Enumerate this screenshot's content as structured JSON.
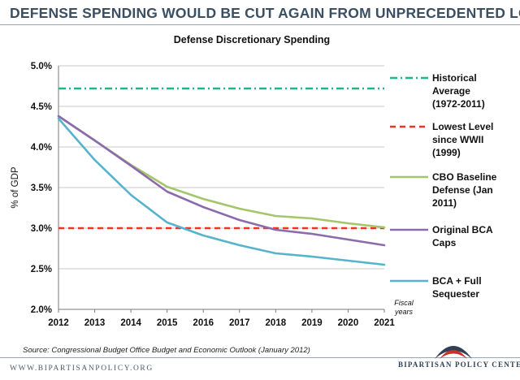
{
  "headline": "DEFENSE SPENDING WOULD BE CUT AGAIN FROM UNPRECEDENTED LOW",
  "source": "Source: Congressional Budget Office Budget and Economic Outlook (January 2012)",
  "website": "WWW.BIPARTISANPOLICY.ORG",
  "organization": "BIPARTISAN POLICY CENTER",
  "chart_data": {
    "type": "line",
    "title": "Defense Discretionary Spending",
    "ylabel": "% of GDP",
    "xlabel_lines": [
      "Fiscal",
      "years"
    ],
    "ylim": [
      2.0,
      5.0
    ],
    "yticks": [
      2.0,
      2.5,
      3.0,
      3.5,
      4.0,
      4.5,
      5.0
    ],
    "ytick_labels": [
      "2.0%",
      "2.5%",
      "3.0%",
      "3.5%",
      "4.0%",
      "4.5%",
      "5.0%"
    ],
    "categories": [
      "2012",
      "2013",
      "2014",
      "2015",
      "2016",
      "2017",
      "2018",
      "2019",
      "2020",
      "2021"
    ],
    "grid": true,
    "legend_position": "right",
    "series": [
      {
        "name": "Historical Average (1972-2011)",
        "legend_lines": [
          "Historical",
          "Average",
          "(1972-2011)"
        ],
        "color": "#1fb58a",
        "dash": "dashdot",
        "values": [
          4.72,
          4.72,
          4.72,
          4.72,
          4.72,
          4.72,
          4.72,
          4.72,
          4.72,
          4.72
        ]
      },
      {
        "name": "Lowest Level since WWII (1999)",
        "legend_lines": [
          "Lowest Level",
          "since WWII",
          "(1999)"
        ],
        "color": "#e8352a",
        "dash": "dashed",
        "values": [
          3.0,
          3.0,
          3.0,
          3.0,
          3.0,
          3.0,
          3.0,
          3.0,
          3.0,
          3.0
        ]
      },
      {
        "name": "CBO Baseline Defense (Jan 2011)",
        "legend_lines": [
          "CBO Baseline",
          "Defense (Jan",
          "2011)"
        ],
        "color": "#a3c66a",
        "dash": "solid",
        "values": [
          4.38,
          4.08,
          3.78,
          3.51,
          3.36,
          3.24,
          3.15,
          3.12,
          3.06,
          3.01
        ]
      },
      {
        "name": "Original BCA Caps",
        "legend_lines": [
          "Original BCA",
          "Caps"
        ],
        "color": "#8b6bab",
        "dash": "solid",
        "values": [
          4.38,
          4.08,
          3.77,
          3.45,
          3.26,
          3.1,
          2.98,
          2.93,
          2.86,
          2.79
        ]
      },
      {
        "name": "BCA + Full Sequester",
        "legend_lines": [
          "BCA + Full",
          "Sequester"
        ],
        "color": "#56b3cc",
        "dash": "solid",
        "values": [
          4.35,
          3.84,
          3.41,
          3.07,
          2.91,
          2.79,
          2.69,
          2.65,
          2.6,
          2.55
        ]
      }
    ]
  }
}
